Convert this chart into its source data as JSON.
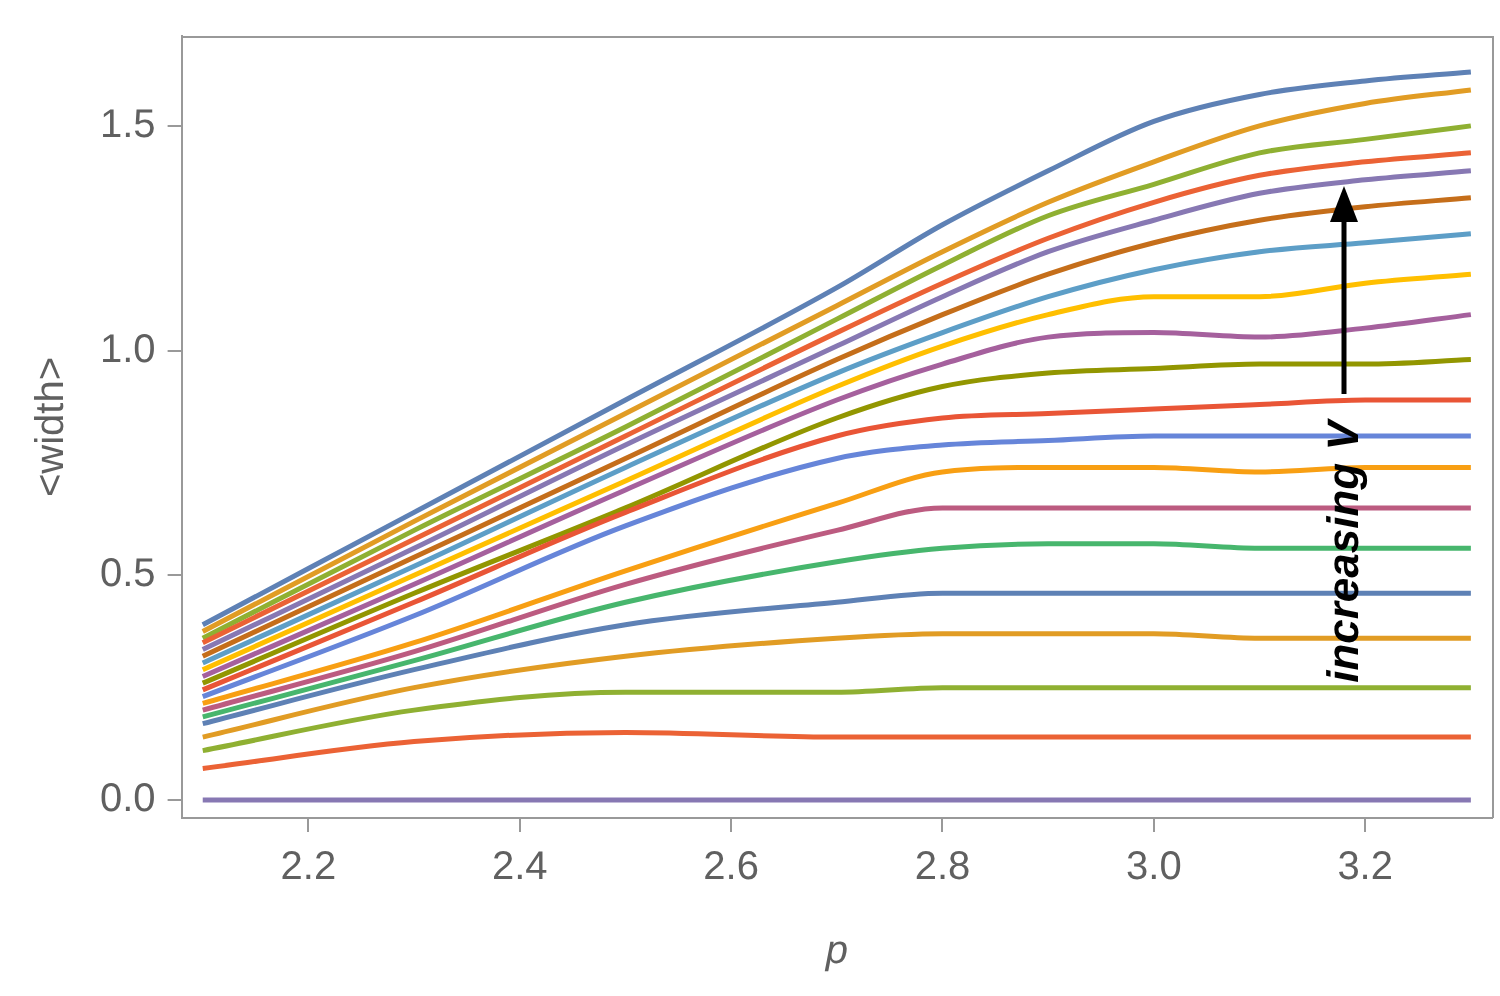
{
  "chart_data": {
    "type": "line",
    "xlabel": "p",
    "ylabel": "<width>",
    "xlim": [
      2.08,
      3.32
    ],
    "xticks": [
      {
        "value": 2.2,
        "label": "2.2"
      },
      {
        "value": 2.4,
        "label": "2.4"
      },
      {
        "value": 2.6,
        "label": "2.6"
      },
      {
        "value": 2.8,
        "label": "2.8"
      },
      {
        "value": 3.0,
        "label": "3.0"
      },
      {
        "value": 3.2,
        "label": "3.2"
      }
    ],
    "ylim": [
      -0.04,
      1.7
    ],
    "yticks": [
      {
        "value": 0,
        "label": "0.0"
      },
      {
        "value": 0.5,
        "label": "0.5"
      },
      {
        "value": 1.0,
        "label": "1.0"
      },
      {
        "value": 1.5,
        "label": "1.5"
      }
    ],
    "grid": false,
    "legend": false,
    "marker": "none",
    "line_style": "solid",
    "annotations": [
      {
        "text": "increasing V",
        "x": 3.18,
        "y": 0.55
      }
    ],
    "x": [
      2.1,
      2.3,
      2.5,
      2.7,
      2.8,
      2.9,
      3.0,
      3.1,
      3.2,
      3.3
    ],
    "series": [
      {
        "color": "#5e81b5",
        "values": [
          0.39,
          0.64,
          0.89,
          1.14,
          1.28,
          1.4,
          1.51,
          1.57,
          1.6,
          1.62
        ]
      },
      {
        "color": "#e19c24",
        "values": [
          0.375,
          0.62,
          0.86,
          1.1,
          1.22,
          1.33,
          1.42,
          1.5,
          1.55,
          1.58
        ]
      },
      {
        "color": "#8fb032",
        "values": [
          0.36,
          0.6,
          0.83,
          1.07,
          1.19,
          1.3,
          1.37,
          1.44,
          1.47,
          1.5
        ]
      },
      {
        "color": "#eb6235",
        "values": [
          0.35,
          0.58,
          0.81,
          1.04,
          1.15,
          1.25,
          1.33,
          1.39,
          1.42,
          1.44
        ]
      },
      {
        "color": "#8778b3",
        "values": [
          0.335,
          0.56,
          0.79,
          1.01,
          1.12,
          1.22,
          1.29,
          1.35,
          1.38,
          1.4
        ]
      },
      {
        "color": "#c56e1a",
        "values": [
          0.32,
          0.54,
          0.76,
          0.98,
          1.08,
          1.17,
          1.24,
          1.29,
          1.32,
          1.34
        ]
      },
      {
        "color": "#5d9ec7",
        "values": [
          0.305,
          0.52,
          0.74,
          0.95,
          1.04,
          1.12,
          1.18,
          1.22,
          1.24,
          1.26
        ]
      },
      {
        "color": "#ffbf00",
        "values": [
          0.29,
          0.5,
          0.71,
          0.92,
          1.01,
          1.08,
          1.12,
          1.12,
          1.15,
          1.17
        ]
      },
      {
        "color": "#a5609d",
        "values": [
          0.275,
          0.48,
          0.69,
          0.89,
          0.97,
          1.03,
          1.04,
          1.03,
          1.05,
          1.08
        ]
      },
      {
        "color": "#929600",
        "values": [
          0.26,
          0.46,
          0.65,
          0.85,
          0.92,
          0.95,
          0.96,
          0.97,
          0.97,
          0.98
        ]
      },
      {
        "color": "#e95536",
        "values": [
          0.245,
          0.44,
          0.64,
          0.81,
          0.85,
          0.86,
          0.87,
          0.88,
          0.89,
          0.89
        ]
      },
      {
        "color": "#6685d9",
        "values": [
          0.23,
          0.41,
          0.61,
          0.76,
          0.79,
          0.8,
          0.81,
          0.81,
          0.81,
          0.81
        ]
      },
      {
        "color": "#f89f13",
        "values": [
          0.215,
          0.35,
          0.51,
          0.66,
          0.73,
          0.74,
          0.74,
          0.73,
          0.74,
          0.74
        ]
      },
      {
        "color": "#bc5b80",
        "values": [
          0.2,
          0.33,
          0.48,
          0.6,
          0.65,
          0.65,
          0.65,
          0.65,
          0.65,
          0.65
        ]
      },
      {
        "color": "#47b66d",
        "values": [
          0.185,
          0.31,
          0.44,
          0.53,
          0.56,
          0.57,
          0.57,
          0.56,
          0.56,
          0.56
        ]
      },
      {
        "color": "#5e81b5",
        "values": [
          0.17,
          0.29,
          0.39,
          0.44,
          0.46,
          0.46,
          0.46,
          0.46,
          0.46,
          0.46
        ]
      },
      {
        "color": "#e19c24",
        "values": [
          0.14,
          0.25,
          0.32,
          0.36,
          0.37,
          0.37,
          0.37,
          0.36,
          0.36,
          0.36
        ]
      },
      {
        "color": "#8fb032",
        "values": [
          0.11,
          0.2,
          0.24,
          0.24,
          0.25,
          0.25,
          0.25,
          0.25,
          0.25,
          0.25
        ]
      },
      {
        "color": "#eb6235",
        "values": [
          0.07,
          0.13,
          0.15,
          0.14,
          0.14,
          0.14,
          0.14,
          0.14,
          0.14,
          0.14
        ]
      },
      {
        "color": "#8778b3",
        "values": [
          0,
          0,
          0,
          0,
          0,
          0,
          0,
          0,
          0,
          0
        ]
      }
    ]
  }
}
